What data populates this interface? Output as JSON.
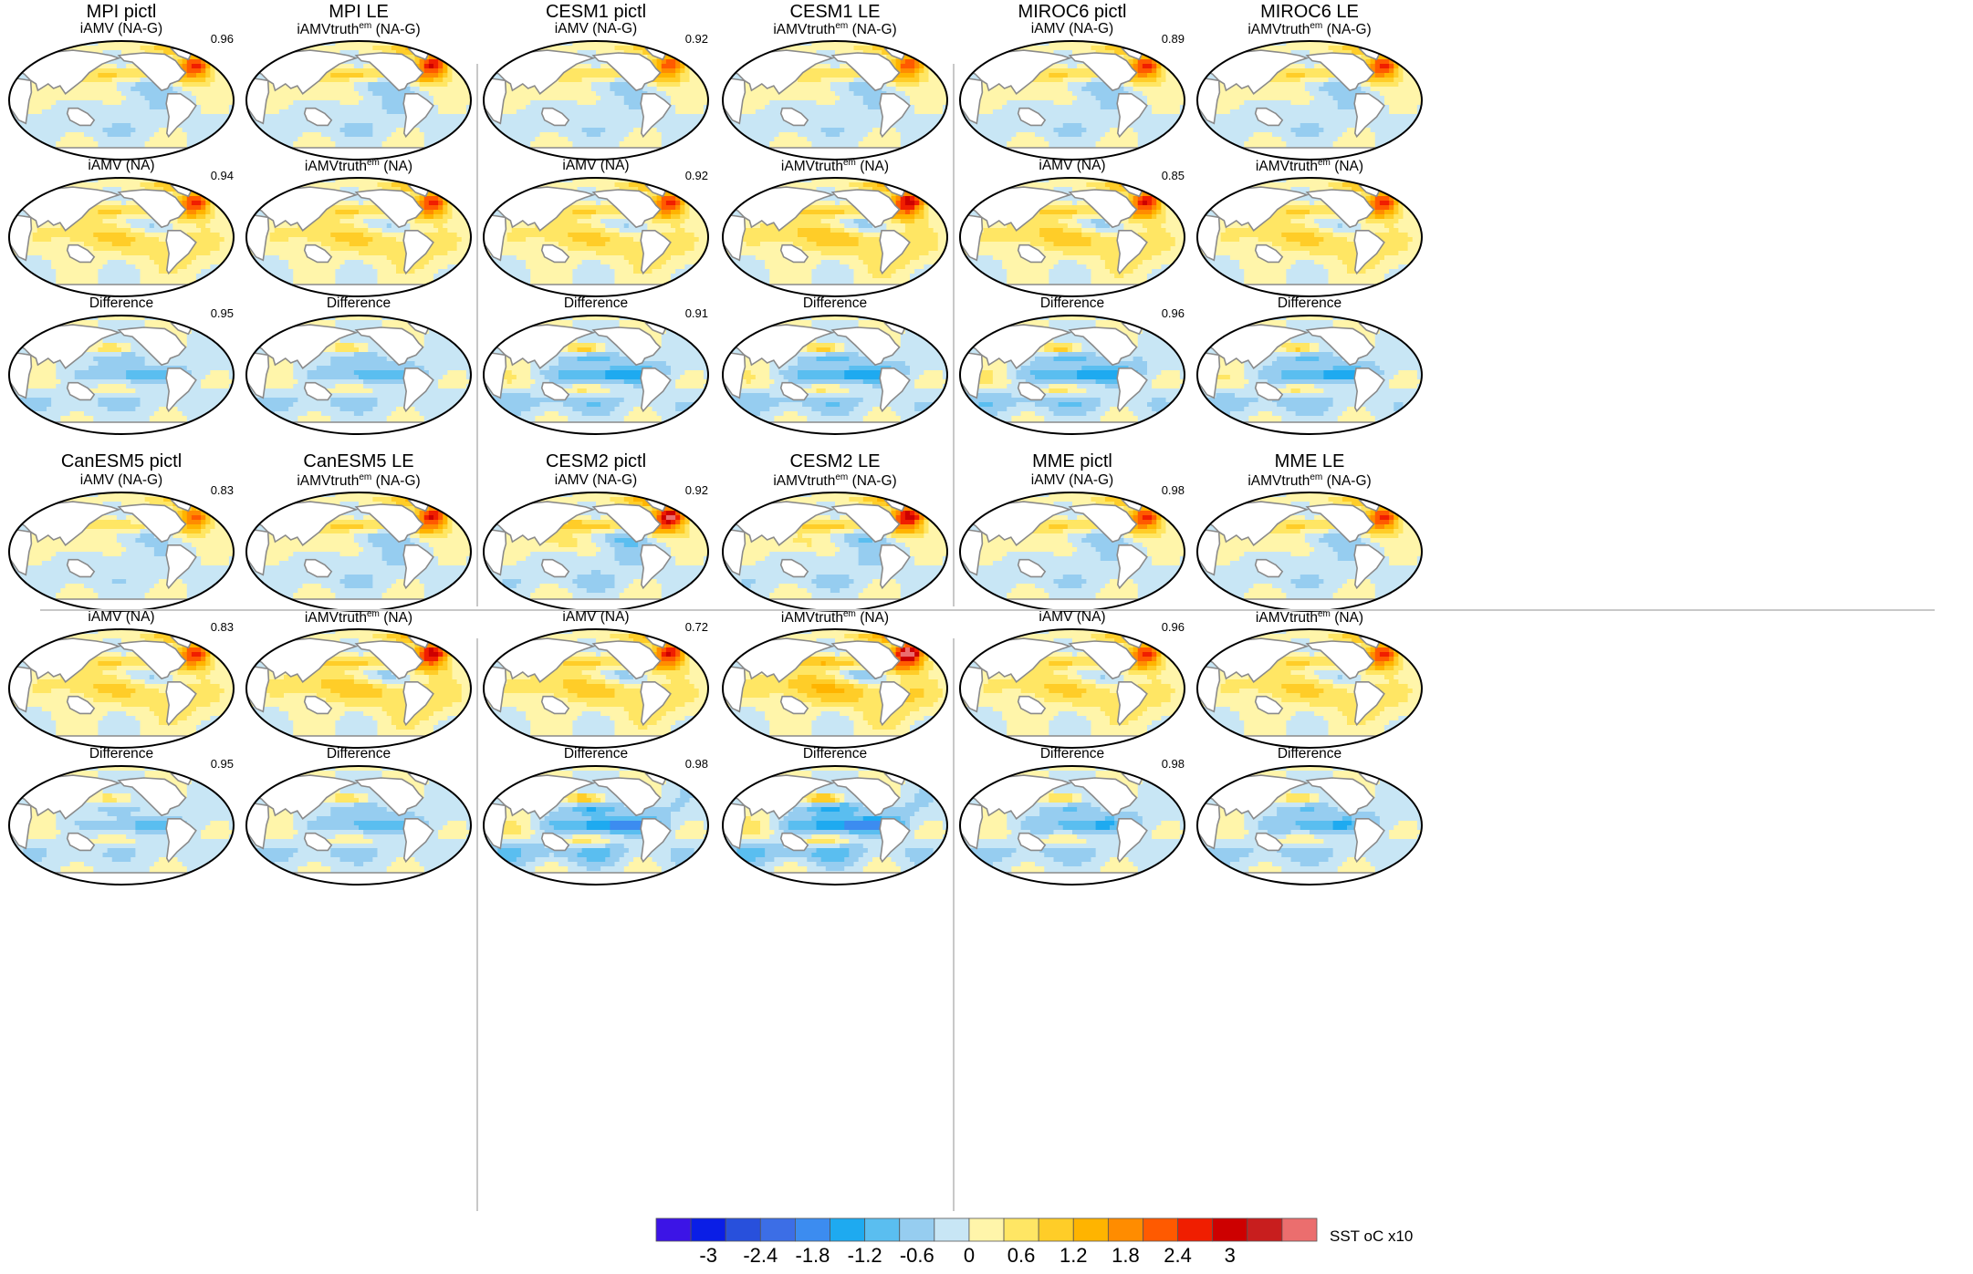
{
  "chart_data": {
    "type": "heatmap",
    "colorbar": {
      "title": "SST",
      "units": "oC x10",
      "levels": [
        -3.2,
        -2.8,
        -2.4,
        -2.0,
        -1.6,
        -1.2,
        -0.8,
        -0.4,
        0.0,
        0.4,
        0.8,
        1.2,
        1.6,
        2.0,
        2.4,
        2.8,
        3.2
      ],
      "tick_labels": [
        "-3",
        "-2.4",
        "-1.8",
        "-1.2",
        "-0.6",
        "0",
        "0.6",
        "1.2",
        "1.8",
        "2.4",
        "3"
      ],
      "colors": [
        "#3c14e6",
        "#0a1ee6",
        "#2850dc",
        "#3c6ee6",
        "#3c8cf0",
        "#1eaaf0",
        "#5abef0",
        "#96cdf0",
        "#c8e6f5",
        "#fff5aa",
        "#ffe664",
        "#ffcd28",
        "#ffb400",
        "#ff8c00",
        "#ff5a00",
        "#f01e00",
        "#cd0000",
        "#c81e1e",
        "#eb6e6e"
      ]
    },
    "groups": [
      {
        "pictl": {
          "title": "MPI pictl",
          "panels": [
            {
              "title": "iAMV (NA-G)",
              "corr": "0.96",
              "pattern": "nag",
              "amp": 1.0
            },
            {
              "title": "iAMV (NA)",
              "corr": "0.94",
              "pattern": "na",
              "amp": 1.0
            },
            {
              "title": "Difference",
              "corr": "0.95",
              "pattern": "diff",
              "amp": 0.9
            }
          ]
        },
        "le": {
          "title": "MPI LE",
          "panels": [
            {
              "title_main": "iAMVtruth",
              "title_sup": "em",
              "title_tail": " (NA-G)",
              "pattern": "nag",
              "amp": 1.1
            },
            {
              "title_main": "iAMVtruth",
              "title_sup": "em",
              "title_tail": " (NA)",
              "pattern": "na",
              "amp": 1.0
            },
            {
              "title": "Difference",
              "pattern": "diff",
              "amp": 1.0
            }
          ]
        }
      },
      {
        "pictl": {
          "title": "CESM1 pictl",
          "panels": [
            {
              "title": "iAMV (NA-G)",
              "corr": "0.92",
              "pattern": "nag",
              "amp": 0.9
            },
            {
              "title": "iAMV (NA)",
              "corr": "0.92",
              "pattern": "na",
              "amp": 1.0
            },
            {
              "title": "Difference",
              "corr": "0.91",
              "pattern": "diff",
              "amp": 1.3
            }
          ]
        },
        "le": {
          "title": "CESM1 LE",
          "panels": [
            {
              "title_main": "iAMVtruth",
              "title_sup": "em",
              "title_tail": " (NA-G)",
              "pattern": "nag",
              "amp": 0.9
            },
            {
              "title_main": "iAMVtruth",
              "title_sup": "em",
              "title_tail": " (NA)",
              "pattern": "na",
              "amp": 1.2
            },
            {
              "title": "Difference",
              "pattern": "diff",
              "amp": 1.3
            }
          ]
        }
      },
      {
        "pictl": {
          "title": "MIROC6 pictl",
          "panels": [
            {
              "title": "iAMV (NA-G)",
              "corr": "0.89",
              "pattern": "nag",
              "amp": 1.0
            },
            {
              "title": "iAMV (NA)",
              "corr": "0.85",
              "pattern": "na",
              "amp": 1.1
            },
            {
              "title": "Difference",
              "corr": "0.96",
              "pattern": "diff",
              "amp": 1.4
            }
          ]
        },
        "le": {
          "title": "MIROC6 LE",
          "panels": [
            {
              "title_main": "iAMVtruth",
              "title_sup": "em",
              "title_tail": " (NA-G)",
              "pattern": "nag",
              "amp": 1.0
            },
            {
              "title_main": "iAMVtruth",
              "title_sup": "em",
              "title_tail": " (NA)",
              "pattern": "na",
              "amp": 1.0
            },
            {
              "title": "Difference",
              "pattern": "diff",
              "amp": 1.2
            }
          ]
        }
      },
      {
        "pictl": {
          "title": "CanESM5 pictl",
          "panels": [
            {
              "title": "iAMV (NA-G)",
              "corr": "0.83",
              "pattern": "nag",
              "amp": 0.8
            },
            {
              "title": "iAMV (NA)",
              "corr": "0.83",
              "pattern": "na",
              "amp": 1.0
            },
            {
              "title": "Difference",
              "corr": "0.95",
              "pattern": "diff",
              "amp": 0.8
            }
          ]
        },
        "le": {
          "title": "CanESM5 LE",
          "panels": [
            {
              "title_main": "iAMVtruth",
              "title_sup": "em",
              "title_tail": " (NA-G)",
              "pattern": "nag",
              "amp": 1.1
            },
            {
              "title_main": "iAMVtruth",
              "title_sup": "em",
              "title_tail": " (NA)",
              "pattern": "na",
              "amp": 1.2
            },
            {
              "title": "Difference",
              "pattern": "diff",
              "amp": 1.0
            }
          ]
        }
      },
      {
        "pictl": {
          "title": "CESM2 pictl",
          "panels": [
            {
              "title": "iAMV (NA-G)",
              "corr": "0.92",
              "pattern": "nag",
              "amp": 1.3
            },
            {
              "title": "iAMV (NA)",
              "corr": "0.72",
              "pattern": "na",
              "amp": 1.1
            },
            {
              "title": "Difference",
              "corr": "0.98",
              "pattern": "diff",
              "amp": 1.6
            }
          ]
        },
        "le": {
          "title": "CESM2 LE",
          "panels": [
            {
              "title_main": "iAMVtruth",
              "title_sup": "em",
              "title_tail": " (NA-G)",
              "pattern": "nag",
              "amp": 1.2
            },
            {
              "title_main": "iAMVtruth",
              "title_sup": "em",
              "title_tail": " (NA)",
              "pattern": "na",
              "amp": 1.4
            },
            {
              "title": "Difference",
              "pattern": "diff",
              "amp": 1.7
            }
          ]
        }
      },
      {
        "pictl": {
          "title": "MME pictl",
          "panels": [
            {
              "title": "iAMV (NA-G)",
              "corr": "0.98",
              "pattern": "nag",
              "amp": 1.0
            },
            {
              "title": "iAMV (NA)",
              "corr": "0.96",
              "pattern": "na",
              "amp": 1.0
            },
            {
              "title": "Difference",
              "corr": "0.98",
              "pattern": "diff",
              "amp": 1.1
            }
          ]
        },
        "le": {
          "title": "MME LE",
          "panels": [
            {
              "title_main": "iAMVtruth",
              "title_sup": "em",
              "title_tail": " (NA-G)",
              "pattern": "nag",
              "amp": 1.0
            },
            {
              "title_main": "iAMVtruth",
              "title_sup": "em",
              "title_tail": " (NA)",
              "pattern": "na",
              "amp": 1.0
            },
            {
              "title": "Difference",
              "pattern": "diff",
              "amp": 1.1
            }
          ]
        }
      }
    ]
  }
}
